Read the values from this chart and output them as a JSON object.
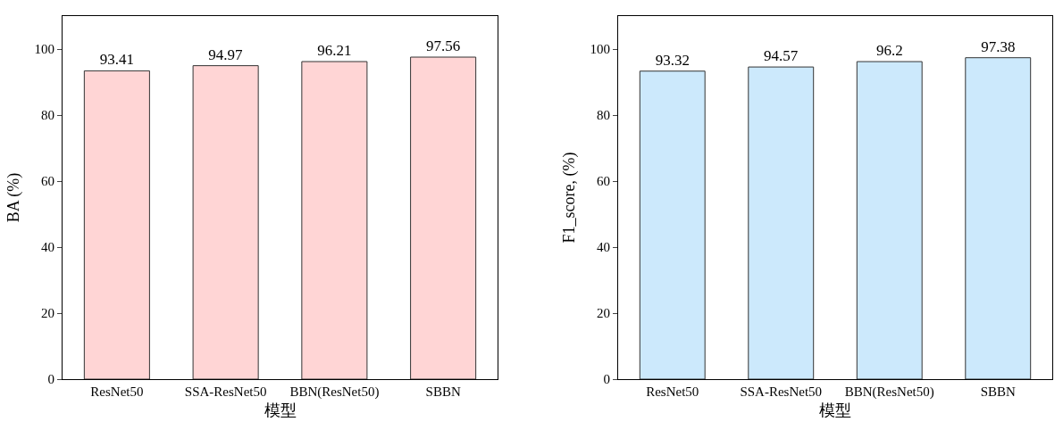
{
  "chart_data": [
    {
      "type": "bar",
      "xlabel": "模型",
      "ylabel": "BA (%)",
      "categories": [
        "ResNet50",
        "SSA-ResNet50",
        "BBN(ResNet50)",
        "SBBN"
      ],
      "values": [
        93.41,
        94.97,
        96.21,
        97.56
      ],
      "color": "#ffd5d5",
      "ylim": [
        0,
        110
      ],
      "yticks": [
        0,
        20,
        40,
        60,
        80,
        100
      ],
      "data_labels": true
    },
    {
      "type": "bar",
      "xlabel": "模型",
      "ylabel": "F1_score, (%)",
      "categories": [
        "ResNet50",
        "SSA-ResNet50",
        "BBN(ResNet50)",
        "SBBN"
      ],
      "values": [
        93.32,
        94.57,
        96.2,
        97.38
      ],
      "color": "#cce9fc",
      "ylim": [
        0,
        110
      ],
      "yticks": [
        0,
        20,
        40,
        60,
        80,
        100
      ],
      "data_labels": true
    }
  ]
}
